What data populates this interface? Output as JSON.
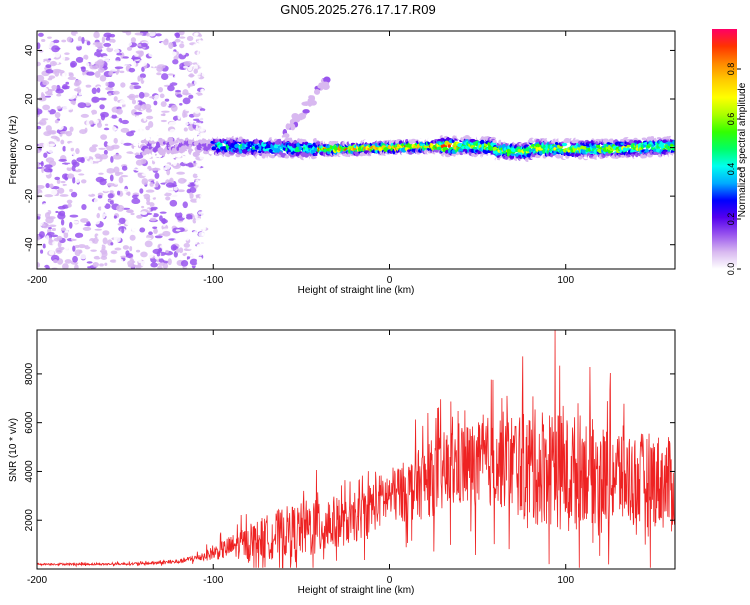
{
  "title": "GN05.2025.276.17.17.R09",
  "colors": {
    "frame": "#000000",
    "snr_line": "#ee2222",
    "background": "#ffffff"
  },
  "chart_data": [
    {
      "type": "heatmap",
      "name": "spectrogram",
      "xlabel": "Height of straight line (km)",
      "ylabel": "Frequency (Hz)",
      "xlim": [
        -200,
        162
      ],
      "ylim": [
        -50,
        48
      ],
      "x_ticks": [
        -200,
        -100,
        0,
        100
      ],
      "y_ticks": [
        -40,
        -20,
        0,
        20,
        40
      ],
      "colorbar": {
        "label": "Normalized spectral amplitude",
        "range": [
          0,
          0.96
        ],
        "ticks": [
          0.0,
          0.2,
          0.4,
          0.6,
          0.8
        ],
        "tick_labels": [
          "0.0",
          "0.2",
          "0.4",
          "0.6",
          "0.8"
        ],
        "stops": [
          "#ffffff",
          "#d8b8f0",
          "#9955ee",
          "#5500ee",
          "#0000ff",
          "#00aaff",
          "#00ffee",
          "#00ff66",
          "#33ff00",
          "#aaff00",
          "#ffff00",
          "#ffcc00",
          "#ff8800",
          "#ff3300",
          "#ff0066"
        ]
      },
      "ridge": {
        "description": "narrow band of high amplitude centered near 0 Hz from about -140 km to 162 km",
        "frequency_center_hz": 0,
        "peak_amplitude": 0.96
      },
      "noise_region_km": [
        -200,
        -110
      ],
      "branch": {
        "x_start_km": -60,
        "x_end_km": -35,
        "freq_start_hz": 5,
        "freq_end_hz": 28
      }
    },
    {
      "type": "line",
      "name": "snr",
      "xlabel": "Height of straight line (km)",
      "ylabel": "SNR (10 * v/v)",
      "xlim": [
        -200,
        162
      ],
      "ylim": [
        0,
        9800
      ],
      "x_ticks": [
        -200,
        -100,
        0,
        100
      ],
      "y_ticks": [
        2000,
        4000,
        6000,
        8000
      ],
      "series": [
        {
          "name": "SNR",
          "x": [
            -200,
            -180,
            -160,
            -140,
            -120,
            -110,
            -100,
            -90,
            -80,
            -70,
            -60,
            -50,
            -40,
            -30,
            -20,
            -10,
            0,
            10,
            20,
            30,
            40,
            50,
            60,
            70,
            80,
            90,
            100,
            110,
            120,
            130,
            140,
            150,
            160
          ],
          "values": [
            200,
            200,
            200,
            220,
            300,
            450,
            650,
            900,
            1100,
            1300,
            1500,
            1600,
            1800,
            1900,
            1900,
            2600,
            3000,
            3200,
            3600,
            3900,
            4300,
            4200,
            4500,
            4400,
            4100,
            4300,
            3900,
            4200,
            3800,
            3900,
            3600,
            3700,
            3400
          ],
          "peak": {
            "x": 94,
            "value": 9800
          },
          "spike_amplitude": [
            50,
            60,
            60,
            80,
            120,
            200,
            400,
            700,
            1000,
            1300,
            1500,
            1600,
            2000,
            1500,
            1200,
            1600,
            1600,
            1800,
            2200,
            2400,
            2600,
            2600,
            2800,
            3000,
            3400,
            3600,
            3400,
            3200,
            3000,
            3000,
            2800,
            2800,
            2800
          ]
        }
      ]
    }
  ]
}
